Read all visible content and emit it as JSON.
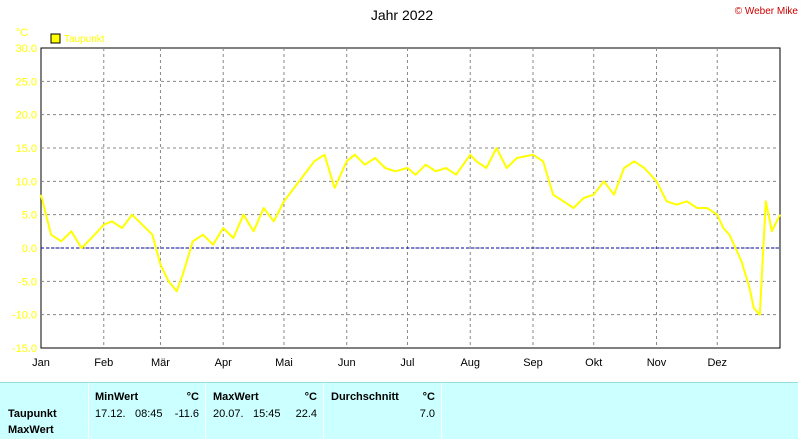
{
  "chart_data": {
    "type": "line",
    "title": "Jahr 2022",
    "copyright": "© Weber Mike",
    "y_unit": "°C",
    "legend": "Taupunkt",
    "colors": {
      "series": "#ffff00",
      "zero_line": "#0000aa",
      "grid": "#888888"
    },
    "ylim": [
      -15.0,
      30.0
    ],
    "yticks": [
      "30.0",
      "25.0",
      "20.0",
      "15.0",
      "10.0",
      "5.0",
      "0.0",
      "-5.0",
      "-10.0",
      "-15.0"
    ],
    "xlim": [
      0,
      365
    ],
    "xticks": [
      {
        "label": "Jan",
        "day": 0
      },
      {
        "label": "Feb",
        "day": 31
      },
      {
        "label": "Mär",
        "day": 59
      },
      {
        "label": "Apr",
        "day": 90
      },
      {
        "label": "Mai",
        "day": 120
      },
      {
        "label": "Jun",
        "day": 151
      },
      {
        "label": "Jul",
        "day": 181
      },
      {
        "label": "Aug",
        "day": 212
      },
      {
        "label": "Sep",
        "day": 243
      },
      {
        "label": "Okt",
        "day": 273
      },
      {
        "label": "Nov",
        "day": 304
      },
      {
        "label": "Dez",
        "day": 334
      }
    ],
    "grid": true,
    "series": [
      {
        "name": "Taupunkt",
        "x": [
          0,
          5,
          10,
          15,
          20,
          25,
          31,
          35,
          40,
          45,
          50,
          55,
          59,
          63,
          67,
          70,
          75,
          80,
          85,
          90,
          95,
          100,
          105,
          110,
          115,
          120,
          125,
          130,
          135,
          140,
          145,
          151,
          155,
          160,
          165,
          170,
          175,
          181,
          185,
          190,
          195,
          200,
          205,
          212,
          215,
          220,
          225,
          230,
          235,
          243,
          248,
          253,
          258,
          263,
          268,
          273,
          278,
          283,
          288,
          293,
          298,
          304,
          309,
          314,
          319,
          324,
          329,
          334,
          337,
          340,
          343,
          346,
          350,
          352,
          355,
          358,
          361,
          365
        ],
        "y": [
          8.0,
          2.0,
          1.0,
          2.5,
          0.0,
          1.5,
          3.5,
          4.0,
          3.0,
          5.0,
          3.5,
          2.0,
          -2.5,
          -5.0,
          -6.5,
          -4.0,
          1.0,
          2.0,
          0.5,
          3.0,
          1.5,
          5.0,
          2.5,
          6.0,
          4.0,
          7.0,
          9.0,
          11.0,
          13.0,
          14.0,
          9.0,
          13.0,
          14.0,
          12.5,
          13.5,
          12.0,
          11.5,
          12.0,
          11.0,
          12.5,
          11.5,
          12.0,
          11.0,
          14.0,
          13.0,
          12.0,
          15.0,
          12.0,
          13.5,
          14.0,
          13.0,
          8.0,
          7.0,
          6.0,
          7.5,
          8.0,
          10.0,
          8.0,
          12.0,
          13.0,
          12.0,
          10.0,
          7.0,
          6.5,
          7.0,
          6.0,
          6.0,
          5.0,
          3.0,
          2.0,
          0.0,
          -2.0,
          -6.0,
          -9.0,
          -10.0,
          7.0,
          2.5,
          5.0
        ]
      }
    ]
  },
  "stats": {
    "row_labels": [
      "Taupunkt",
      "MaxWert"
    ],
    "min": {
      "header": "MinWert",
      "unit": "°C",
      "date": "17.12.",
      "time": "08:45",
      "value": "-11.6"
    },
    "max": {
      "header": "MaxWert",
      "unit": "°C",
      "date": "20.07.",
      "time": "15:45",
      "value": "22.4"
    },
    "avg": {
      "header": "Durchschnitt",
      "unit": "°C",
      "value": "7.0"
    }
  }
}
